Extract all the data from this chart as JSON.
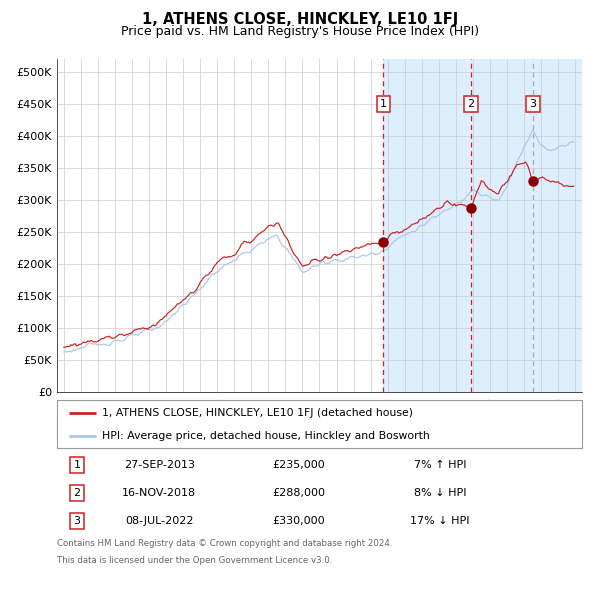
{
  "title": "1, ATHENS CLOSE, HINCKLEY, LE10 1FJ",
  "subtitle": "Price paid vs. HM Land Registry's House Price Index (HPI)",
  "legend_line1": "1, ATHENS CLOSE, HINCKLEY, LE10 1FJ (detached house)",
  "legend_line2": "HPI: Average price, detached house, Hinckley and Bosworth",
  "footer_line1": "Contains HM Land Registry data © Crown copyright and database right 2024.",
  "footer_line2": "This data is licensed under the Open Government Licence v3.0.",
  "transactions": [
    {
      "num": "1",
      "date": "27-SEP-2013",
      "price": "£235,000",
      "pct": "7% ↑ HPI",
      "yr": 2013.75,
      "dot_y": 235000
    },
    {
      "num": "2",
      "date": "16-NOV-2018",
      "price": "£288,000",
      "pct": "8% ↓ HPI",
      "yr": 2018.88,
      "dot_y": 288000
    },
    {
      "num": "3",
      "date": "08-JUL-2022",
      "price": "£330,000",
      "pct": "17% ↓ HPI",
      "yr": 2022.52,
      "dot_y": 330000
    }
  ],
  "hpi_color": "#aac8e8",
  "price_color": "#cc2222",
  "dot_color": "#880000",
  "vline_red_color": "#cc2222",
  "vline_grey_color": "#aaaaaa",
  "shade_color": "#ddeeff",
  "grid_color": "#cccccc",
  "ylim": [
    0,
    520000
  ],
  "yticks": [
    0,
    50000,
    100000,
    150000,
    200000,
    250000,
    300000,
    350000,
    400000,
    450000,
    500000
  ],
  "xlim_start": 1994.6,
  "xlim_end": 2025.4,
  "background_color": "#ffffff",
  "box_color": "#cc2222",
  "hpi_anchors_yr": [
    1995.0,
    1996.5,
    1998.5,
    2000.5,
    2002.5,
    2004.0,
    2005.5,
    2007.5,
    2009.0,
    2010.5,
    2012.0,
    2013.5,
    2014.5,
    2015.5,
    2016.5,
    2017.5,
    2018.5,
    2019.0,
    2019.5,
    2020.5,
    2021.0,
    2021.5,
    2022.0,
    2022.5,
    2023.0,
    2023.5,
    2024.0,
    2024.8
  ],
  "hpi_anchors_val": [
    63000,
    72000,
    83000,
    100000,
    148000,
    190000,
    215000,
    245000,
    188000,
    205000,
    210000,
    218000,
    238000,
    252000,
    268000,
    285000,
    305000,
    318000,
    308000,
    298000,
    320000,
    355000,
    385000,
    408000,
    385000,
    378000,
    382000,
    392000
  ],
  "price_anchors_yr": [
    1995.0,
    1996.5,
    1998.5,
    2000.5,
    2002.5,
    2004.0,
    2005.5,
    2007.5,
    2009.0,
    2010.5,
    2012.0,
    2013.75,
    2014.5,
    2015.5,
    2016.5,
    2017.5,
    2018.88,
    2019.5,
    2020.5,
    2021.5,
    2022.1,
    2022.52,
    2023.0,
    2023.5,
    2024.0,
    2024.8
  ],
  "price_anchors_val": [
    70000,
    80000,
    90000,
    108000,
    155000,
    200000,
    228000,
    266000,
    196000,
    212000,
    222000,
    235000,
    248000,
    260000,
    278000,
    298000,
    288000,
    330000,
    308000,
    350000,
    360000,
    330000,
    335000,
    328000,
    325000,
    322000
  ]
}
